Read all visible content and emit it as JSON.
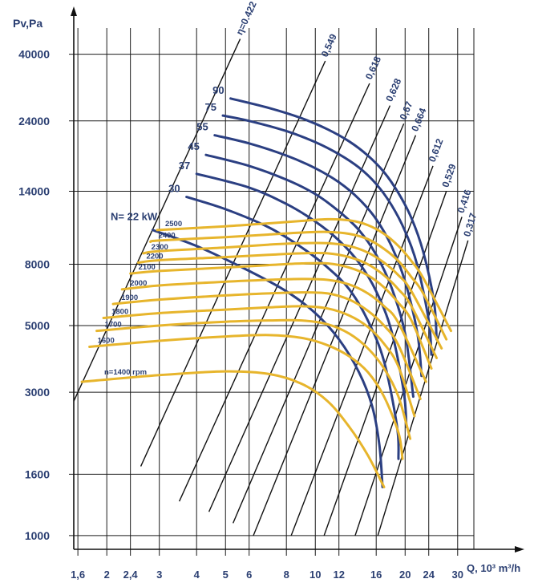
{
  "chart_data": {
    "type": "line",
    "title": "",
    "ylabel": "Pv,Pa",
    "xlabel": "Q, 10³ m³/h",
    "x_scale": "log",
    "y_scale": "log",
    "xlim": [
      1.55,
      34
    ],
    "ylim": [
      900,
      52000
    ],
    "grid": true,
    "x_ticks": [
      {
        "value": 1.6,
        "label": "1,6"
      },
      {
        "value": 2,
        "label": "2"
      },
      {
        "value": 2.4,
        "label": "2,4"
      },
      {
        "value": 3,
        "label": "3"
      },
      {
        "value": 4,
        "label": "4"
      },
      {
        "value": 5,
        "label": "5"
      },
      {
        "value": 6,
        "label": "6"
      },
      {
        "value": 8,
        "label": "8"
      },
      {
        "value": 10,
        "label": "10"
      },
      {
        "value": 12,
        "label": "12"
      },
      {
        "value": 16,
        "label": "16"
      },
      {
        "value": 20,
        "label": "20"
      },
      {
        "value": 24,
        "label": "24"
      },
      {
        "value": 30,
        "label": "30"
      }
    ],
    "y_ticks": [
      {
        "value": 1000,
        "label": "1000"
      },
      {
        "value": 1600,
        "label": "1600"
      },
      {
        "value": 3000,
        "label": "3000"
      },
      {
        "value": 5000,
        "label": "5000"
      },
      {
        "value": 8000,
        "label": "8000"
      },
      {
        "value": 14000,
        "label": "14000"
      },
      {
        "value": 24000,
        "label": "24000"
      },
      {
        "value": 40000,
        "label": "40000"
      }
    ],
    "speed_curves_color": "#e7b52c",
    "power_curves_color": "#2b3f82",
    "efficiency_lines_color": "#111111",
    "speed_curves": [
      {
        "label": "n=1400 rpm",
        "points": [
          [
            1.65,
            3250
          ],
          [
            3,
            3420
          ],
          [
            5,
            3520
          ],
          [
            7,
            3450
          ],
          [
            9,
            3200
          ],
          [
            11,
            2800
          ],
          [
            13,
            2300
          ],
          [
            15,
            1850
          ],
          [
            17,
            1450
          ]
        ]
      },
      {
        "label": "1600",
        "points": [
          [
            1.75,
            4250
          ],
          [
            3,
            4450
          ],
          [
            5,
            4600
          ],
          [
            7,
            4650
          ],
          [
            9,
            4550
          ],
          [
            11,
            4300
          ],
          [
            13,
            3950
          ],
          [
            15,
            3500
          ],
          [
            17,
            2900
          ],
          [
            19,
            2200
          ],
          [
            19.6,
            1800
          ]
        ]
      },
      {
        "label": "1700",
        "points": [
          [
            1.85,
            4800
          ],
          [
            3,
            5000
          ],
          [
            5,
            5150
          ],
          [
            7,
            5200
          ],
          [
            9,
            5200
          ],
          [
            11,
            5050
          ],
          [
            13,
            4700
          ],
          [
            15,
            4200
          ],
          [
            17,
            3600
          ],
          [
            19,
            2900
          ],
          [
            20.8,
            2100
          ]
        ]
      },
      {
        "label": "1800",
        "points": [
          [
            1.95,
            5300
          ],
          [
            3,
            5500
          ],
          [
            5,
            5650
          ],
          [
            7,
            5750
          ],
          [
            9,
            5800
          ],
          [
            11,
            5700
          ],
          [
            13,
            5400
          ],
          [
            15,
            4950
          ],
          [
            17,
            4350
          ],
          [
            19,
            3650
          ],
          [
            21.5,
            2500
          ]
        ]
      },
      {
        "label": "1900",
        "points": [
          [
            2.1,
            5900
          ],
          [
            3,
            6100
          ],
          [
            5,
            6300
          ],
          [
            7,
            6400
          ],
          [
            9,
            6450
          ],
          [
            11,
            6400
          ],
          [
            13,
            6100
          ],
          [
            15,
            5600
          ],
          [
            17,
            5000
          ],
          [
            19,
            4300
          ],
          [
            22.5,
            2850
          ]
        ]
      },
      {
        "label": "2000",
        "points": [
          [
            2.25,
            6600
          ],
          [
            3,
            6800
          ],
          [
            5,
            7000
          ],
          [
            7,
            7100
          ],
          [
            9,
            7150
          ],
          [
            11,
            7100
          ],
          [
            13,
            6850
          ],
          [
            15,
            6400
          ],
          [
            17,
            5800
          ],
          [
            19,
            5100
          ],
          [
            23.5,
            3250
          ]
        ]
      },
      {
        "label": "2100",
        "points": [
          [
            2.4,
            7450
          ],
          [
            3,
            7600
          ],
          [
            5,
            7800
          ],
          [
            7,
            7950
          ],
          [
            9,
            8050
          ],
          [
            11,
            8050
          ],
          [
            13,
            7800
          ],
          [
            15,
            7350
          ],
          [
            17,
            6700
          ],
          [
            19,
            5950
          ],
          [
            21,
            5200
          ],
          [
            24.5,
            3600
          ]
        ]
      },
      {
        "label": "2200",
        "points": [
          [
            2.55,
            8100
          ],
          [
            3,
            8250
          ],
          [
            5,
            8450
          ],
          [
            7,
            8600
          ],
          [
            9,
            8700
          ],
          [
            11,
            8700
          ],
          [
            13,
            8450
          ],
          [
            15,
            8000
          ],
          [
            17,
            7350
          ],
          [
            19,
            6600
          ],
          [
            21,
            5800
          ],
          [
            25.5,
            3900
          ]
        ]
      },
      {
        "label": "2300",
        "points": [
          [
            2.65,
            8700
          ],
          [
            3,
            8850
          ],
          [
            5,
            9100
          ],
          [
            7,
            9300
          ],
          [
            9,
            9400
          ],
          [
            11,
            9400
          ],
          [
            13,
            9200
          ],
          [
            15,
            8750
          ],
          [
            17,
            8100
          ],
          [
            19,
            7350
          ],
          [
            21,
            6500
          ],
          [
            26.5,
            4200
          ]
        ]
      },
      {
        "label": "2400",
        "points": [
          [
            2.8,
            9500
          ],
          [
            3,
            9600
          ],
          [
            5,
            9850
          ],
          [
            7,
            10050
          ],
          [
            9,
            10200
          ],
          [
            11,
            10250
          ],
          [
            13,
            10100
          ],
          [
            15,
            9700
          ],
          [
            17,
            9000
          ],
          [
            19,
            8200
          ],
          [
            21,
            7250
          ],
          [
            23,
            6400
          ],
          [
            27.5,
            4500
          ]
        ]
      },
      {
        "label": "2500",
        "points": [
          [
            2.95,
            10400
          ],
          [
            5,
            10700
          ],
          [
            7,
            10950
          ],
          [
            9,
            11150
          ],
          [
            11,
            11300
          ],
          [
            13,
            11200
          ],
          [
            15,
            10800
          ],
          [
            17,
            10100
          ],
          [
            19,
            9200
          ],
          [
            21,
            8200
          ],
          [
            23,
            7200
          ],
          [
            28.5,
            4800
          ]
        ]
      }
    ],
    "power_curves": [
      {
        "label": "N= 22 kW",
        "points": [
          [
            2.85,
            10400
          ],
          [
            4,
            9200
          ],
          [
            6,
            7600
          ],
          [
            8,
            6500
          ],
          [
            10,
            5500
          ],
          [
            12,
            4500
          ],
          [
            14,
            3500
          ],
          [
            15.5,
            2700
          ],
          [
            16.4,
            2000
          ],
          [
            16.8,
            1450
          ]
        ]
      },
      {
        "label": "30",
        "points": [
          [
            3.7,
            13400
          ],
          [
            5,
            12200
          ],
          [
            7,
            10600
          ],
          [
            9,
            9100
          ],
          [
            11,
            7800
          ],
          [
            13,
            6600
          ],
          [
            15,
            5200
          ],
          [
            17,
            3800
          ],
          [
            18.8,
            2300
          ],
          [
            19,
            1800
          ]
        ]
      },
      {
        "label": "37",
        "points": [
          [
            4,
            16000
          ],
          [
            6,
            14400
          ],
          [
            8,
            12700
          ],
          [
            10,
            11100
          ],
          [
            12,
            9600
          ],
          [
            14,
            8100
          ],
          [
            16,
            6500
          ],
          [
            18,
            4800
          ],
          [
            19.8,
            3000
          ],
          [
            20.2,
            2300
          ]
        ]
      },
      {
        "label": "45",
        "points": [
          [
            4.3,
            18500
          ],
          [
            6,
            17000
          ],
          [
            8,
            15300
          ],
          [
            10,
            13700
          ],
          [
            12,
            12000
          ],
          [
            14,
            10400
          ],
          [
            16,
            8600
          ],
          [
            18,
            6700
          ],
          [
            20,
            4700
          ],
          [
            21.3,
            2900
          ]
        ]
      },
      {
        "label": "55",
        "points": [
          [
            4.6,
            21500
          ],
          [
            6,
            20200
          ],
          [
            8,
            18400
          ],
          [
            10,
            16700
          ],
          [
            12,
            15000
          ],
          [
            14,
            13200
          ],
          [
            16,
            11300
          ],
          [
            18,
            9200
          ],
          [
            20,
            7000
          ],
          [
            22,
            4700
          ],
          [
            22.7,
            3400
          ]
        ]
      },
      {
        "label": "75",
        "points": [
          [
            4.9,
            25000
          ],
          [
            6,
            24000
          ],
          [
            8,
            22200
          ],
          [
            10,
            20400
          ],
          [
            12,
            18600
          ],
          [
            14,
            16800
          ],
          [
            16,
            14800
          ],
          [
            18,
            12600
          ],
          [
            20,
            10300
          ],
          [
            22,
            7900
          ],
          [
            24,
            5200
          ],
          [
            24.5,
            4000
          ]
        ]
      },
      {
        "label": "90",
        "points": [
          [
            5.2,
            28500
          ],
          [
            7,
            26500
          ],
          [
            9,
            24500
          ],
          [
            11,
            22500
          ],
          [
            13,
            20500
          ],
          [
            15,
            18400
          ],
          [
            17,
            16200
          ],
          [
            19,
            13800
          ],
          [
            21,
            11400
          ],
          [
            23,
            8800
          ],
          [
            25,
            6000
          ],
          [
            25.5,
            4500
          ]
        ]
      }
    ],
    "efficiency_lines": [
      {
        "label": "η=0.422",
        "points": [
          [
            1.55,
            2800
          ],
          [
            5.6,
            45000
          ]
        ]
      },
      {
        "label": "0,549",
        "points": [
          [
            2.6,
            1700
          ],
          [
            10.8,
            38000
          ]
        ]
      },
      {
        "label": "0,618",
        "points": [
          [
            3.5,
            1300
          ],
          [
            15.2,
            32000
          ]
        ]
      },
      {
        "label": "0,628",
        "points": [
          [
            4.4,
            1200
          ],
          [
            17.8,
            27000
          ]
        ]
      },
      {
        "label": "0,67",
        "points": [
          [
            5.3,
            1100
          ],
          [
            19.8,
            23500
          ]
        ]
      },
      {
        "label": "0,664",
        "points": [
          [
            6.2,
            1000
          ],
          [
            21.7,
            21500
          ]
        ]
      },
      {
        "label": "0,612",
        "points": [
          [
            8.3,
            1000
          ],
          [
            24.8,
            17000
          ]
        ]
      },
      {
        "label": "0,529",
        "points": [
          [
            10.7,
            1000
          ],
          [
            27.5,
            14000
          ]
        ]
      },
      {
        "label": "0,416",
        "points": [
          [
            13.6,
            1000
          ],
          [
            31,
            11500
          ]
        ]
      },
      {
        "label": "0,317",
        "points": [
          [
            16.2,
            1000
          ],
          [
            32.5,
            9600
          ]
        ]
      }
    ]
  }
}
